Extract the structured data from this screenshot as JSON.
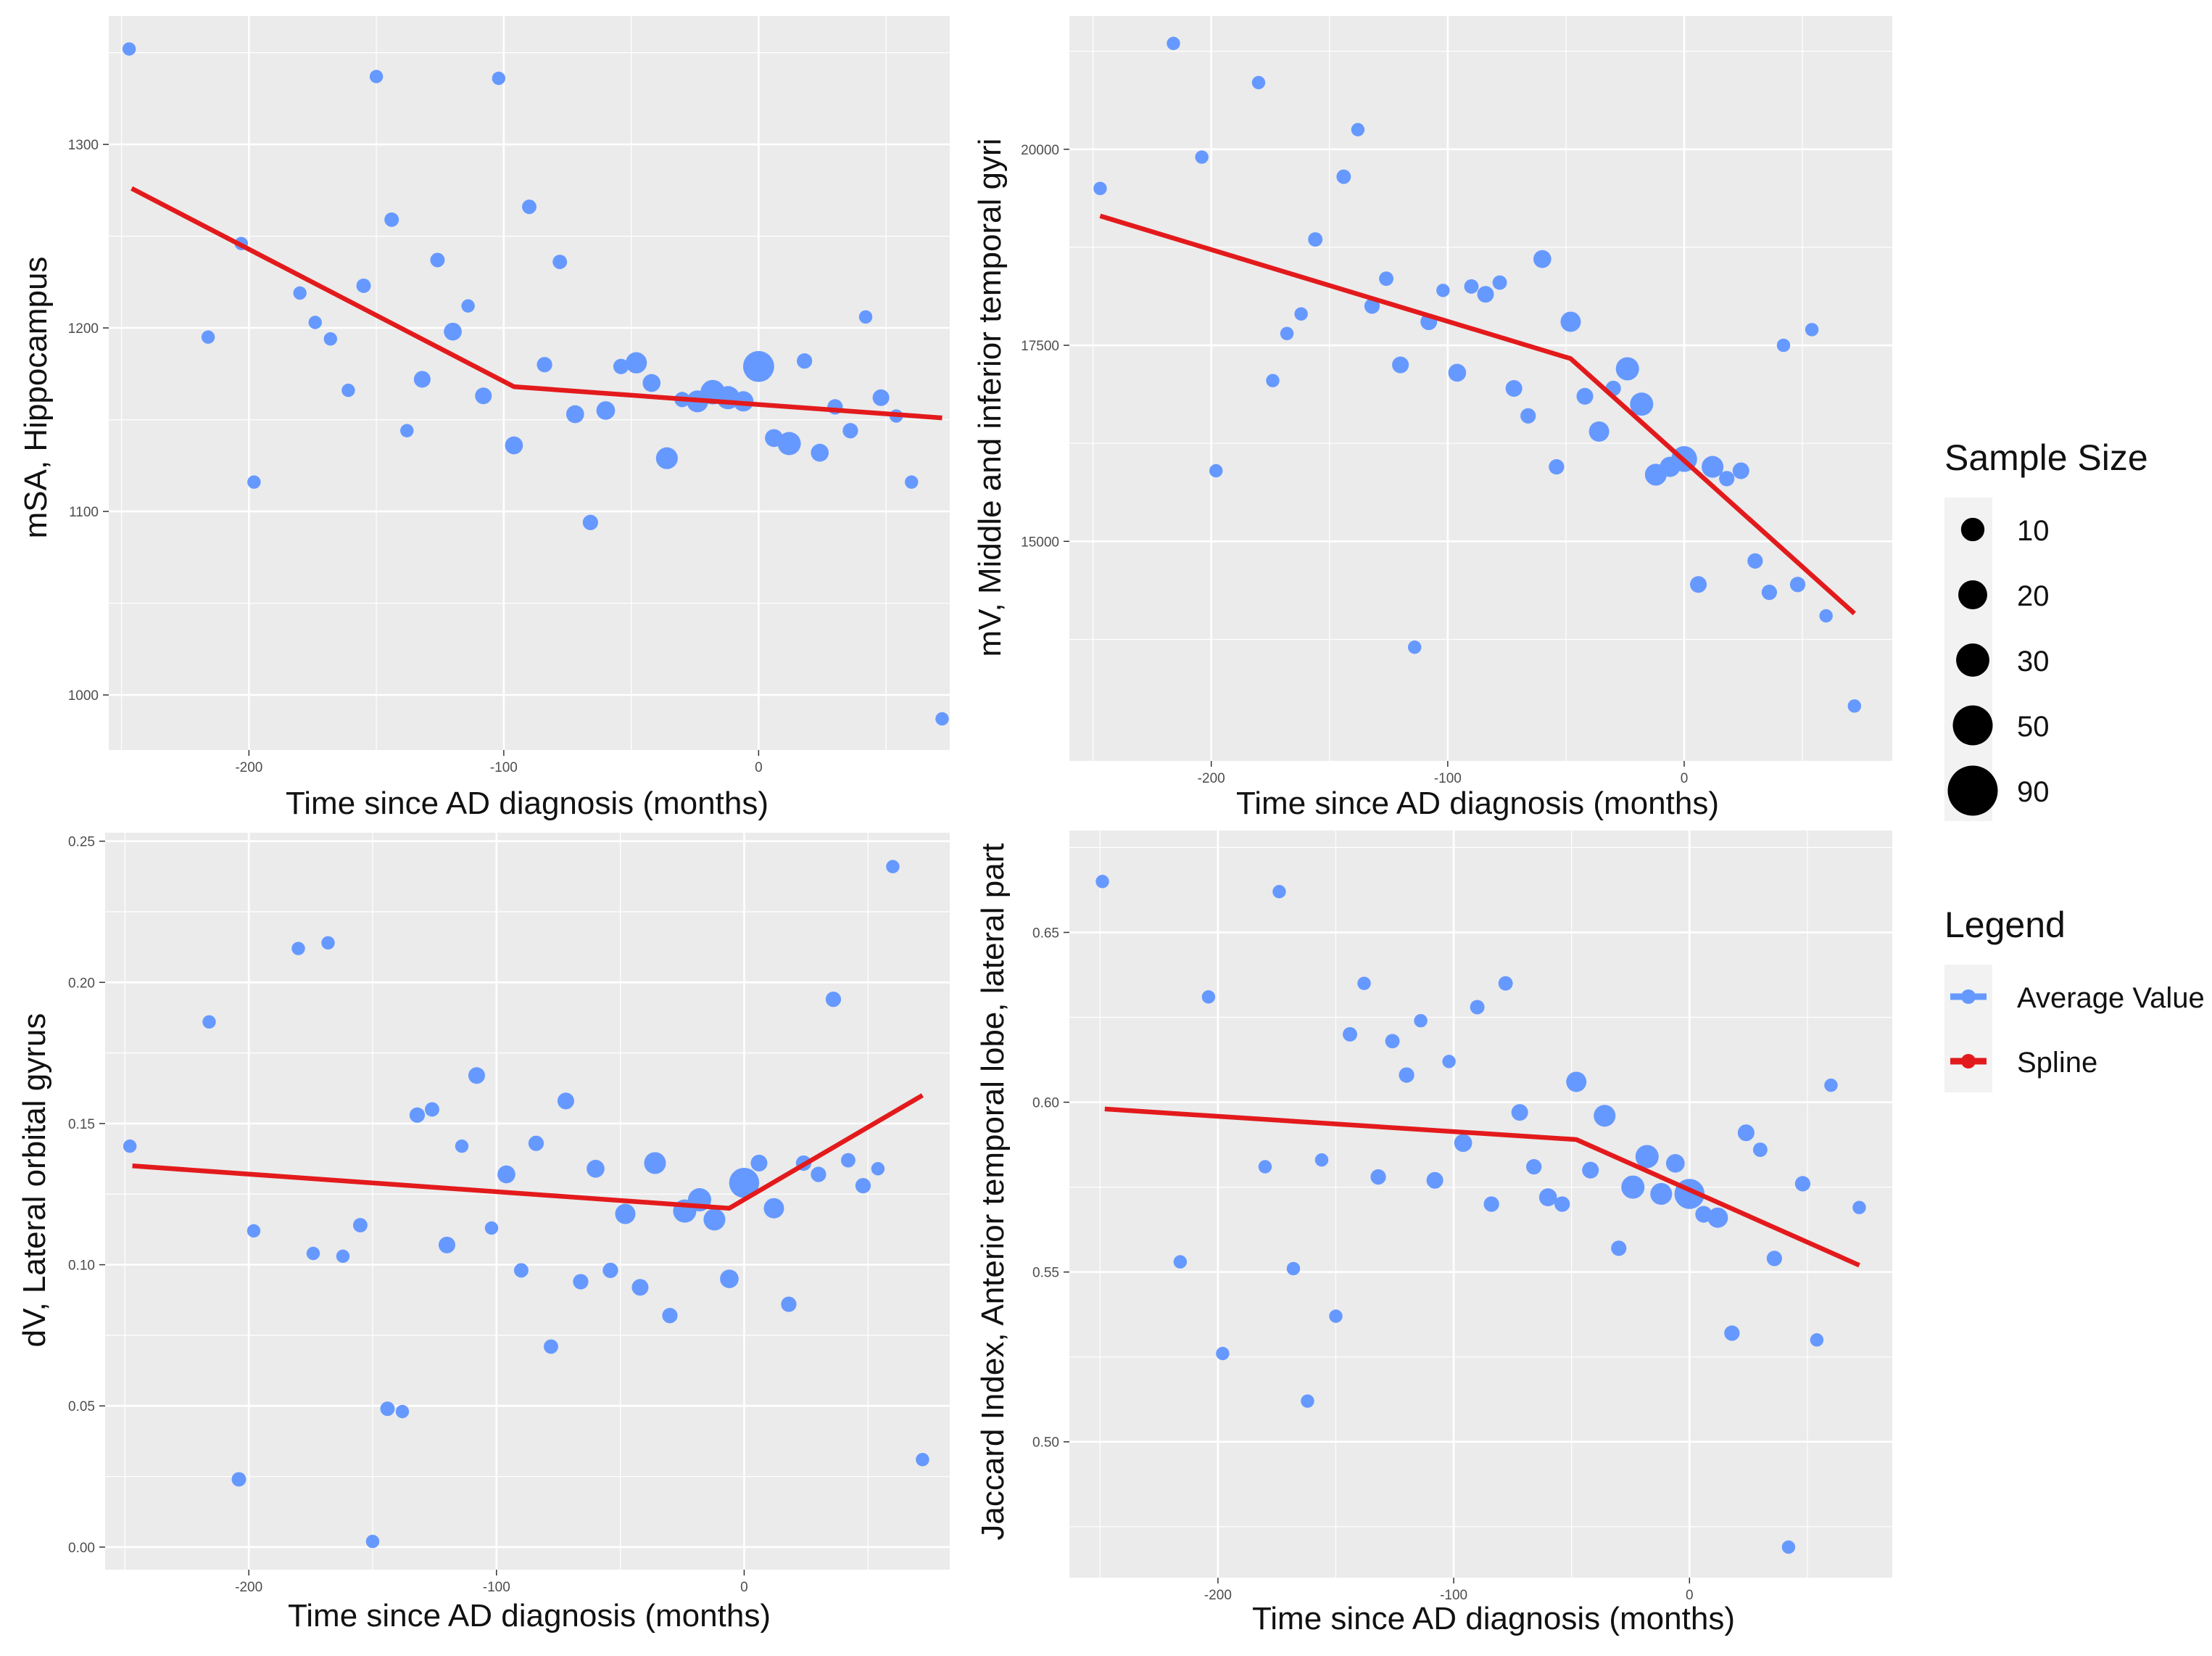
{
  "chart_data": [
    {
      "id": "panel-hippocampus",
      "type": "scatter",
      "title": "",
      "xlabel": "Time since AD diagnosis (months)",
      "ylabel": "mSA, Hippocampus",
      "xlim": [
        -255,
        75
      ],
      "ylim": [
        970,
        1370
      ],
      "xticks": [
        -200,
        -100,
        0
      ],
      "xtick_labels": [
        "-200",
        "-100",
        "0"
      ],
      "yticks": [
        1000,
        1100,
        1200,
        1300
      ],
      "ytick_labels": [
        "1000",
        "1100",
        "1200",
        "1300"
      ],
      "points": [
        {
          "x": -247,
          "y": 1352,
          "n": 8
        },
        {
          "x": -216,
          "y": 1195,
          "n": 8
        },
        {
          "x": -203,
          "y": 1246,
          "n": 8
        },
        {
          "x": -198,
          "y": 1116,
          "n": 8
        },
        {
          "x": -180,
          "y": 1219,
          "n": 8
        },
        {
          "x": -174,
          "y": 1203,
          "n": 8
        },
        {
          "x": -168,
          "y": 1194,
          "n": 8
        },
        {
          "x": -161,
          "y": 1166,
          "n": 8
        },
        {
          "x": -155,
          "y": 1223,
          "n": 10
        },
        {
          "x": -150,
          "y": 1337,
          "n": 8
        },
        {
          "x": -144,
          "y": 1259,
          "n": 10
        },
        {
          "x": -138,
          "y": 1144,
          "n": 8
        },
        {
          "x": -132,
          "y": 1172,
          "n": 15
        },
        {
          "x": -126,
          "y": 1237,
          "n": 10
        },
        {
          "x": -120,
          "y": 1198,
          "n": 18
        },
        {
          "x": -114,
          "y": 1212,
          "n": 8
        },
        {
          "x": -108,
          "y": 1163,
          "n": 15
        },
        {
          "x": -102,
          "y": 1336,
          "n": 8
        },
        {
          "x": -96,
          "y": 1136,
          "n": 18
        },
        {
          "x": -90,
          "y": 1266,
          "n": 10
        },
        {
          "x": -84,
          "y": 1180,
          "n": 12
        },
        {
          "x": -78,
          "y": 1236,
          "n": 10
        },
        {
          "x": -72,
          "y": 1153,
          "n": 18
        },
        {
          "x": -66,
          "y": 1094,
          "n": 12
        },
        {
          "x": -60,
          "y": 1155,
          "n": 20
        },
        {
          "x": -54,
          "y": 1179,
          "n": 12
        },
        {
          "x": -48,
          "y": 1181,
          "n": 28
        },
        {
          "x": -42,
          "y": 1170,
          "n": 18
        },
        {
          "x": -36,
          "y": 1129,
          "n": 30
        },
        {
          "x": -30,
          "y": 1161,
          "n": 12
        },
        {
          "x": -24,
          "y": 1160,
          "n": 30
        },
        {
          "x": -18,
          "y": 1165,
          "n": 40
        },
        {
          "x": -12,
          "y": 1162,
          "n": 35
        },
        {
          "x": -6,
          "y": 1160,
          "n": 25
        },
        {
          "x": 0,
          "y": 1179,
          "n": 70
        },
        {
          "x": 6,
          "y": 1140,
          "n": 18
        },
        {
          "x": 12,
          "y": 1137,
          "n": 35
        },
        {
          "x": 18,
          "y": 1182,
          "n": 12
        },
        {
          "x": 24,
          "y": 1132,
          "n": 18
        },
        {
          "x": 30,
          "y": 1157,
          "n": 12
        },
        {
          "x": 36,
          "y": 1144,
          "n": 12
        },
        {
          "x": 42,
          "y": 1206,
          "n": 8
        },
        {
          "x": 48,
          "y": 1162,
          "n": 15
        },
        {
          "x": 54,
          "y": 1152,
          "n": 8
        },
        {
          "x": 60,
          "y": 1116,
          "n": 8
        },
        {
          "x": 72,
          "y": 987,
          "n": 8
        }
      ],
      "spline": [
        {
          "x": -246,
          "y": 1276
        },
        {
          "x": -96,
          "y": 1168
        },
        {
          "x": 72,
          "y": 1151
        }
      ]
    },
    {
      "id": "panel-temporal-gyri",
      "type": "scatter",
      "title": "",
      "xlabel": "Time since AD diagnosis (months)",
      "ylabel": "mV, Middle and inferior temporal gyri",
      "xlim": [
        -260,
        88
      ],
      "ylim": [
        12200,
        21700
      ],
      "xticks": [
        -200,
        -100,
        0
      ],
      "xtick_labels": [
        "-200",
        "-100",
        "0"
      ],
      "yticks": [
        15000,
        17500,
        20000
      ],
      "ytick_labels": [
        "15000",
        "17500",
        "20000"
      ],
      "points": [
        {
          "x": -247,
          "y": 19500,
          "n": 8
        },
        {
          "x": -216,
          "y": 21350,
          "n": 8
        },
        {
          "x": -204,
          "y": 19900,
          "n": 8
        },
        {
          "x": -198,
          "y": 15900,
          "n": 8
        },
        {
          "x": -180,
          "y": 20850,
          "n": 8
        },
        {
          "x": -174,
          "y": 17050,
          "n": 8
        },
        {
          "x": -168,
          "y": 17650,
          "n": 8
        },
        {
          "x": -162,
          "y": 17900,
          "n": 8
        },
        {
          "x": -156,
          "y": 18850,
          "n": 10
        },
        {
          "x": -144,
          "y": 19650,
          "n": 10
        },
        {
          "x": -138,
          "y": 20250,
          "n": 8
        },
        {
          "x": -132,
          "y": 18000,
          "n": 12
        },
        {
          "x": -126,
          "y": 18350,
          "n": 10
        },
        {
          "x": -120,
          "y": 17250,
          "n": 15
        },
        {
          "x": -114,
          "y": 13650,
          "n": 8
        },
        {
          "x": -108,
          "y": 17800,
          "n": 15
        },
        {
          "x": -102,
          "y": 18200,
          "n": 8
        },
        {
          "x": -96,
          "y": 17150,
          "n": 18
        },
        {
          "x": -90,
          "y": 18250,
          "n": 10
        },
        {
          "x": -84,
          "y": 18150,
          "n": 15
        },
        {
          "x": -78,
          "y": 18300,
          "n": 10
        },
        {
          "x": -72,
          "y": 16950,
          "n": 15
        },
        {
          "x": -66,
          "y": 16600,
          "n": 12
        },
        {
          "x": -60,
          "y": 18600,
          "n": 18
        },
        {
          "x": -54,
          "y": 15950,
          "n": 12
        },
        {
          "x": -48,
          "y": 17800,
          "n": 25
        },
        {
          "x": -42,
          "y": 16850,
          "n": 15
        },
        {
          "x": -36,
          "y": 16400,
          "n": 25
        },
        {
          "x": -30,
          "y": 16950,
          "n": 12
        },
        {
          "x": -24,
          "y": 17200,
          "n": 35
        },
        {
          "x": -18,
          "y": 16750,
          "n": 35
        },
        {
          "x": -12,
          "y": 15850,
          "n": 30
        },
        {
          "x": -6,
          "y": 15950,
          "n": 25
        },
        {
          "x": 0,
          "y": 16050,
          "n": 45
        },
        {
          "x": 6,
          "y": 14450,
          "n": 15
        },
        {
          "x": 12,
          "y": 15950,
          "n": 30
        },
        {
          "x": 18,
          "y": 15800,
          "n": 12
        },
        {
          "x": 24,
          "y": 15900,
          "n": 15
        },
        {
          "x": 30,
          "y": 14750,
          "n": 12
        },
        {
          "x": 36,
          "y": 14350,
          "n": 12
        },
        {
          "x": 42,
          "y": 17500,
          "n": 8
        },
        {
          "x": 48,
          "y": 14450,
          "n": 12
        },
        {
          "x": 54,
          "y": 17700,
          "n": 8
        },
        {
          "x": 60,
          "y": 14050,
          "n": 8
        },
        {
          "x": 72,
          "y": 12900,
          "n": 8
        }
      ],
      "spline": [
        {
          "x": -247,
          "y": 19150
        },
        {
          "x": -48,
          "y": 17330
        },
        {
          "x": 72,
          "y": 14080
        }
      ]
    },
    {
      "id": "panel-orbital-gyrus",
      "type": "scatter",
      "title": "",
      "xlabel": "Time since AD diagnosis (months)",
      "ylabel": "dV, Lateral orbital gyrus",
      "xlim": [
        -258,
        83
      ],
      "ylim": [
        -0.008,
        0.253
      ],
      "xticks": [
        -200,
        -100,
        0
      ],
      "xtick_labels": [
        "-200",
        "-100",
        "0"
      ],
      "yticks": [
        0.0,
        0.05,
        0.1,
        0.15,
        0.2,
        0.25
      ],
      "ytick_labels": [
        "0.00",
        "0.05",
        "0.10",
        "0.15",
        "0.20",
        "0.25"
      ],
      "points": [
        {
          "x": -248,
          "y": 0.142,
          "n": 8
        },
        {
          "x": -216,
          "y": 0.186,
          "n": 8
        },
        {
          "x": -204,
          "y": 0.024,
          "n": 10
        },
        {
          "x": -198,
          "y": 0.112,
          "n": 8
        },
        {
          "x": -180,
          "y": 0.212,
          "n": 8
        },
        {
          "x": -174,
          "y": 0.104,
          "n": 8
        },
        {
          "x": -168,
          "y": 0.214,
          "n": 8
        },
        {
          "x": -162,
          "y": 0.103,
          "n": 8
        },
        {
          "x": -155,
          "y": 0.114,
          "n": 10
        },
        {
          "x": -150,
          "y": 0.002,
          "n": 8
        },
        {
          "x": -144,
          "y": 0.049,
          "n": 10
        },
        {
          "x": -138,
          "y": 0.048,
          "n": 8
        },
        {
          "x": -132,
          "y": 0.153,
          "n": 12
        },
        {
          "x": -126,
          "y": 0.155,
          "n": 10
        },
        {
          "x": -120,
          "y": 0.107,
          "n": 15
        },
        {
          "x": -114,
          "y": 0.142,
          "n": 8
        },
        {
          "x": -108,
          "y": 0.167,
          "n": 15
        },
        {
          "x": -102,
          "y": 0.113,
          "n": 8
        },
        {
          "x": -96,
          "y": 0.132,
          "n": 18
        },
        {
          "x": -90,
          "y": 0.098,
          "n": 10
        },
        {
          "x": -84,
          "y": 0.143,
          "n": 12
        },
        {
          "x": -78,
          "y": 0.071,
          "n": 10
        },
        {
          "x": -72,
          "y": 0.158,
          "n": 15
        },
        {
          "x": -66,
          "y": 0.094,
          "n": 12
        },
        {
          "x": -60,
          "y": 0.134,
          "n": 18
        },
        {
          "x": -54,
          "y": 0.098,
          "n": 12
        },
        {
          "x": -48,
          "y": 0.118,
          "n": 25
        },
        {
          "x": -42,
          "y": 0.092,
          "n": 15
        },
        {
          "x": -36,
          "y": 0.136,
          "n": 30
        },
        {
          "x": -30,
          "y": 0.082,
          "n": 12
        },
        {
          "x": -24,
          "y": 0.119,
          "n": 35
        },
        {
          "x": -18,
          "y": 0.123,
          "n": 35
        },
        {
          "x": -12,
          "y": 0.116,
          "n": 30
        },
        {
          "x": -6,
          "y": 0.095,
          "n": 20
        },
        {
          "x": 0,
          "y": 0.129,
          "n": 65
        },
        {
          "x": 6,
          "y": 0.136,
          "n": 15
        },
        {
          "x": 12,
          "y": 0.12,
          "n": 25
        },
        {
          "x": 18,
          "y": 0.086,
          "n": 12
        },
        {
          "x": 24,
          "y": 0.136,
          "n": 12
        },
        {
          "x": 30,
          "y": 0.132,
          "n": 12
        },
        {
          "x": 36,
          "y": 0.194,
          "n": 12
        },
        {
          "x": 42,
          "y": 0.137,
          "n": 10
        },
        {
          "x": 48,
          "y": 0.128,
          "n": 12
        },
        {
          "x": 54,
          "y": 0.134,
          "n": 8
        },
        {
          "x": 60,
          "y": 0.241,
          "n": 8
        },
        {
          "x": 72,
          "y": 0.031,
          "n": 8
        }
      ],
      "spline": [
        {
          "x": -247,
          "y": 0.135
        },
        {
          "x": -6,
          "y": 0.12
        },
        {
          "x": 72,
          "y": 0.16
        }
      ]
    },
    {
      "id": "panel-anterior-temporal",
      "type": "scatter",
      "title": "",
      "xlabel": "Time since AD diagnosis (months)",
      "ylabel": "Jaccard Index, Anterior temporal lobe, lateral part",
      "xlim": [
        -263,
        86
      ],
      "ylim": [
        0.46,
        0.68
      ],
      "xticks": [
        -200,
        -100,
        0
      ],
      "xtick_labels": [
        "-200",
        "-100",
        "0"
      ],
      "yticks": [
        0.5,
        0.55,
        0.6,
        0.65
      ],
      "ytick_labels": [
        "0.50",
        "0.55",
        "0.60",
        "0.65"
      ],
      "points": [
        {
          "x": -249,
          "y": 0.665,
          "n": 8
        },
        {
          "x": -216,
          "y": 0.553,
          "n": 8
        },
        {
          "x": -204,
          "y": 0.631,
          "n": 8
        },
        {
          "x": -198,
          "y": 0.526,
          "n": 8
        },
        {
          "x": -180,
          "y": 0.581,
          "n": 8
        },
        {
          "x": -174,
          "y": 0.662,
          "n": 8
        },
        {
          "x": -168,
          "y": 0.551,
          "n": 8
        },
        {
          "x": -162,
          "y": 0.512,
          "n": 8
        },
        {
          "x": -156,
          "y": 0.583,
          "n": 8
        },
        {
          "x": -150,
          "y": 0.537,
          "n": 8
        },
        {
          "x": -144,
          "y": 0.62,
          "n": 10
        },
        {
          "x": -138,
          "y": 0.635,
          "n": 8
        },
        {
          "x": -132,
          "y": 0.578,
          "n": 12
        },
        {
          "x": -126,
          "y": 0.618,
          "n": 10
        },
        {
          "x": -120,
          "y": 0.608,
          "n": 12
        },
        {
          "x": -114,
          "y": 0.624,
          "n": 8
        },
        {
          "x": -108,
          "y": 0.577,
          "n": 15
        },
        {
          "x": -102,
          "y": 0.612,
          "n": 8
        },
        {
          "x": -96,
          "y": 0.588,
          "n": 18
        },
        {
          "x": -90,
          "y": 0.628,
          "n": 10
        },
        {
          "x": -84,
          "y": 0.57,
          "n": 12
        },
        {
          "x": -78,
          "y": 0.635,
          "n": 10
        },
        {
          "x": -72,
          "y": 0.597,
          "n": 15
        },
        {
          "x": -66,
          "y": 0.581,
          "n": 12
        },
        {
          "x": -60,
          "y": 0.572,
          "n": 18
        },
        {
          "x": -54,
          "y": 0.57,
          "n": 12
        },
        {
          "x": -48,
          "y": 0.606,
          "n": 25
        },
        {
          "x": -42,
          "y": 0.58,
          "n": 15
        },
        {
          "x": -36,
          "y": 0.596,
          "n": 30
        },
        {
          "x": -30,
          "y": 0.557,
          "n": 12
        },
        {
          "x": -24,
          "y": 0.575,
          "n": 35
        },
        {
          "x": -18,
          "y": 0.584,
          "n": 35
        },
        {
          "x": -12,
          "y": 0.573,
          "n": 30
        },
        {
          "x": -6,
          "y": 0.582,
          "n": 20
        },
        {
          "x": 0,
          "y": 0.573,
          "n": 65
        },
        {
          "x": 6,
          "y": 0.567,
          "n": 15
        },
        {
          "x": 12,
          "y": 0.566,
          "n": 25
        },
        {
          "x": 18,
          "y": 0.532,
          "n": 12
        },
        {
          "x": 24,
          "y": 0.591,
          "n": 15
        },
        {
          "x": 30,
          "y": 0.586,
          "n": 10
        },
        {
          "x": 36,
          "y": 0.554,
          "n": 12
        },
        {
          "x": 42,
          "y": 0.469,
          "n": 8
        },
        {
          "x": 48,
          "y": 0.576,
          "n": 12
        },
        {
          "x": 54,
          "y": 0.53,
          "n": 8
        },
        {
          "x": 60,
          "y": 0.605,
          "n": 8
        },
        {
          "x": 72,
          "y": 0.569,
          "n": 8
        }
      ],
      "spline": [
        {
          "x": -248,
          "y": 0.598
        },
        {
          "x": -48,
          "y": 0.589
        },
        {
          "x": 72,
          "y": 0.552
        }
      ]
    }
  ],
  "legend": {
    "size_title": "Sample Size",
    "size_entries": [
      {
        "label": "10",
        "n": 10
      },
      {
        "label": "20",
        "n": 20
      },
      {
        "label": "30",
        "n": 30
      },
      {
        "label": "50",
        "n": 50
      },
      {
        "label": "90",
        "n": 90
      }
    ],
    "legend_title": "Legend",
    "color_entries": [
      {
        "label": "Average Value",
        "color": "#6699ff"
      },
      {
        "label": "Spline",
        "color": "#e31a1c"
      }
    ]
  },
  "colors": {
    "panel_bg": "#ebebeb",
    "grid_major": "#ffffff",
    "point": "#6699ff",
    "spline": "#e31a1c"
  }
}
